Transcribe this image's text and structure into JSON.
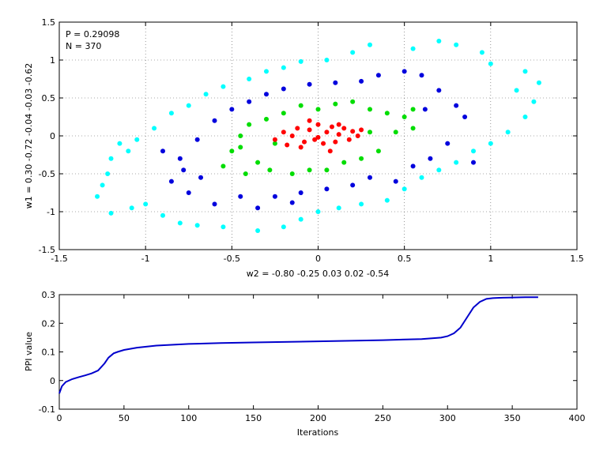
{
  "chart_data": [
    {
      "type": "scatter",
      "xlabel": "w2 = -0.80  -0.25  0.03  0.02  -0.54",
      "ylabel": "w1 = 0.30  -0.72  -0.04  -0.03  -0.62",
      "xlim": [
        -1.5,
        1.5
      ],
      "ylim": [
        -1.5,
        1.5
      ],
      "xticks": [
        -1.5,
        -1,
        -0.5,
        0,
        0.5,
        1,
        1.5
      ],
      "yticks": [
        -1.5,
        -1,
        -0.5,
        0,
        0.5,
        1,
        1.5
      ],
      "xtick_labels": [
        "-1.5",
        "-1",
        "-0.5",
        "0",
        "0.5",
        "1",
        "1.5"
      ],
      "ytick_labels": [
        "-1.5",
        "-1",
        "-0.5",
        "0",
        "0.5",
        "1",
        "1.5"
      ],
      "grid": true,
      "annotations": [
        "P = 0.29098",
        "N = 370"
      ],
      "series": [
        {
          "color": "#00ffff",
          "points": [
            [
              -1.25,
              -0.65
            ],
            [
              -1.2,
              -0.3
            ],
            [
              -1.15,
              -0.1
            ],
            [
              -1.08,
              -0.95
            ],
            [
              -1.2,
              -1.02
            ],
            [
              -1.0,
              -0.9
            ],
            [
              -0.9,
              -1.05
            ],
            [
              -0.8,
              -1.15
            ],
            [
              -0.7,
              -1.18
            ],
            [
              -0.55,
              -1.2
            ],
            [
              -0.35,
              -1.25
            ],
            [
              -0.2,
              -1.2
            ],
            [
              -0.1,
              -1.1
            ],
            [
              0.0,
              -1.0
            ],
            [
              0.12,
              -0.95
            ],
            [
              0.25,
              -0.9
            ],
            [
              0.4,
              -0.85
            ],
            [
              0.5,
              -0.7
            ],
            [
              0.6,
              -0.55
            ],
            [
              0.7,
              -0.45
            ],
            [
              0.8,
              -0.35
            ],
            [
              0.9,
              -0.2
            ],
            [
              1.0,
              -0.1
            ],
            [
              1.1,
              0.05
            ],
            [
              1.2,
              0.25
            ],
            [
              1.25,
              0.45
            ],
            [
              1.28,
              0.7
            ],
            [
              1.2,
              0.85
            ],
            [
              1.0,
              0.95
            ],
            [
              0.8,
              1.2
            ],
            [
              0.7,
              1.25
            ],
            [
              0.55,
              1.15
            ],
            [
              0.3,
              1.2
            ],
            [
              0.2,
              1.1
            ],
            [
              0.05,
              1.0
            ],
            [
              -0.1,
              0.98
            ],
            [
              -0.2,
              0.9
            ],
            [
              -0.3,
              0.85
            ],
            [
              -0.4,
              0.75
            ],
            [
              -0.55,
              0.65
            ],
            [
              -0.65,
              0.55
            ],
            [
              -0.75,
              0.4
            ],
            [
              -0.85,
              0.3
            ],
            [
              -0.95,
              0.1
            ],
            [
              -1.05,
              -0.05
            ],
            [
              -1.1,
              -0.2
            ],
            [
              -1.22,
              -0.5
            ],
            [
              -1.28,
              -0.8
            ],
            [
              1.15,
              0.6
            ],
            [
              0.95,
              1.1
            ]
          ]
        },
        {
          "color": "#0000dd",
          "points": [
            [
              -0.9,
              -0.2
            ],
            [
              -0.85,
              -0.6
            ],
            [
              -0.8,
              -0.3
            ],
            [
              -0.75,
              -0.75
            ],
            [
              -0.7,
              -0.05
            ],
            [
              -0.68,
              -0.55
            ],
            [
              -0.6,
              0.2
            ],
            [
              -0.6,
              -0.9
            ],
            [
              -0.5,
              0.35
            ],
            [
              -0.45,
              -0.8
            ],
            [
              -0.4,
              0.45
            ],
            [
              -0.35,
              -0.95
            ],
            [
              -0.3,
              0.55
            ],
            [
              -0.25,
              -0.8
            ],
            [
              -0.2,
              0.62
            ],
            [
              -0.1,
              -0.75
            ],
            [
              -0.05,
              0.68
            ],
            [
              0.05,
              -0.7
            ],
            [
              0.1,
              0.7
            ],
            [
              0.2,
              -0.65
            ],
            [
              0.25,
              0.72
            ],
            [
              0.3,
              -0.55
            ],
            [
              0.35,
              0.8
            ],
            [
              0.45,
              -0.6
            ],
            [
              0.5,
              0.85
            ],
            [
              0.55,
              -0.4
            ],
            [
              0.6,
              0.8
            ],
            [
              0.65,
              -0.3
            ],
            [
              0.7,
              0.6
            ],
            [
              0.75,
              -0.1
            ],
            [
              0.8,
              0.4
            ],
            [
              0.85,
              0.25
            ],
            [
              0.9,
              -0.35
            ],
            [
              -0.15,
              -0.88
            ],
            [
              0.62,
              0.35
            ],
            [
              -0.78,
              -0.45
            ]
          ]
        },
        {
          "color": "#00dd00",
          "points": [
            [
              -0.55,
              -0.4
            ],
            [
              -0.5,
              -0.2
            ],
            [
              -0.45,
              0.0
            ],
            [
              -0.42,
              -0.5
            ],
            [
              -0.4,
              0.15
            ],
            [
              -0.35,
              -0.35
            ],
            [
              -0.3,
              0.22
            ],
            [
              -0.28,
              -0.45
            ],
            [
              -0.2,
              0.3
            ],
            [
              -0.15,
              -0.5
            ],
            [
              -0.1,
              0.4
            ],
            [
              -0.05,
              -0.45
            ],
            [
              0.0,
              0.35
            ],
            [
              0.05,
              -0.45
            ],
            [
              0.1,
              0.42
            ],
            [
              0.15,
              -0.35
            ],
            [
              0.2,
              0.45
            ],
            [
              0.25,
              -0.3
            ],
            [
              0.3,
              0.35
            ],
            [
              0.35,
              -0.2
            ],
            [
              0.4,
              0.3
            ],
            [
              0.45,
              0.05
            ],
            [
              0.5,
              0.25
            ],
            [
              0.55,
              0.1
            ],
            [
              0.55,
              0.35
            ],
            [
              -0.45,
              -0.15
            ],
            [
              0.3,
              0.05
            ],
            [
              -0.25,
              -0.1
            ]
          ]
        },
        {
          "color": "#ff0000",
          "points": [
            [
              -0.25,
              -0.05
            ],
            [
              -0.2,
              0.05
            ],
            [
              -0.18,
              -0.12
            ],
            [
              -0.12,
              0.1
            ],
            [
              -0.1,
              -0.15
            ],
            [
              -0.05,
              0.08
            ],
            [
              -0.02,
              -0.05
            ],
            [
              0.0,
              0.15
            ],
            [
              0.03,
              -0.1
            ],
            [
              0.05,
              0.05
            ],
            [
              0.08,
              0.12
            ],
            [
              0.1,
              -0.08
            ],
            [
              0.12,
              0.02
            ],
            [
              0.15,
              0.1
            ],
            [
              0.18,
              -0.05
            ],
            [
              0.2,
              0.06
            ],
            [
              0.23,
              0.0
            ],
            [
              0.25,
              0.08
            ],
            [
              -0.15,
              0.0
            ],
            [
              0.0,
              -0.02
            ],
            [
              -0.08,
              -0.08
            ],
            [
              0.12,
              0.15
            ],
            [
              -0.05,
              0.2
            ],
            [
              0.07,
              -0.2
            ]
          ]
        }
      ]
    },
    {
      "type": "line",
      "xlabel": "Iterations",
      "ylabel": "PPI value",
      "xlim": [
        0,
        400
      ],
      "ylim": [
        -0.1,
        0.3
      ],
      "xticks": [
        0,
        50,
        100,
        150,
        200,
        250,
        300,
        350,
        400
      ],
      "yticks": [
        -0.1,
        0,
        0.1,
        0.2,
        0.3
      ],
      "xtick_labels": [
        "0",
        "50",
        "100",
        "150",
        "200",
        "250",
        "300",
        "350",
        "400"
      ],
      "ytick_labels": [
        "-0.1",
        "0",
        "0.1",
        "0.2",
        "0.3"
      ],
      "grid": false,
      "series": [
        {
          "color": "#0000cc",
          "x": [
            0,
            2,
            5,
            10,
            15,
            20,
            25,
            30,
            35,
            38,
            42,
            45,
            50,
            60,
            75,
            100,
            125,
            150,
            200,
            250,
            280,
            295,
            300,
            305,
            310,
            315,
            320,
            325,
            330,
            335,
            340,
            350,
            360,
            370
          ],
          "y": [
            -0.045,
            -0.02,
            -0.005,
            0.005,
            0.012,
            0.018,
            0.025,
            0.035,
            0.06,
            0.08,
            0.095,
            0.1,
            0.107,
            0.115,
            0.122,
            0.128,
            0.131,
            0.133,
            0.137,
            0.141,
            0.145,
            0.15,
            0.155,
            0.165,
            0.185,
            0.22,
            0.255,
            0.275,
            0.285,
            0.288,
            0.289,
            0.29,
            0.291,
            0.291
          ]
        }
      ]
    }
  ]
}
